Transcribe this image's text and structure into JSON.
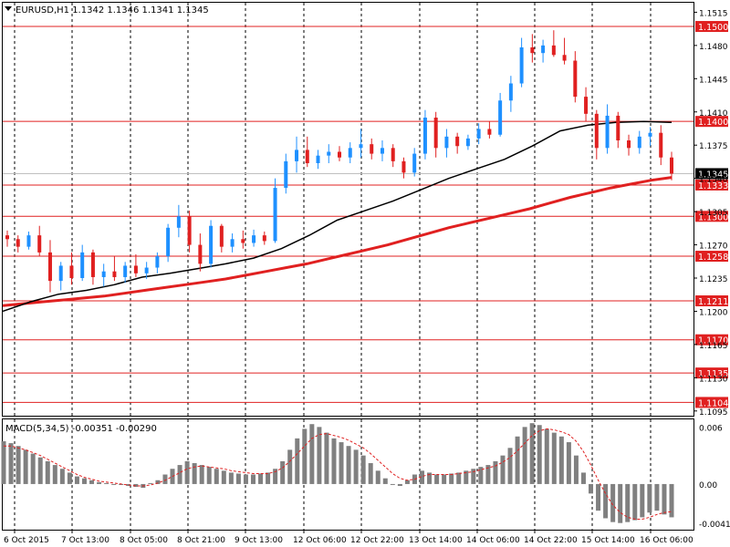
{
  "chart_data": [
    {
      "type": "candlestick",
      "symbol": "EURUSD,H1",
      "title": "EURUSD,H1  1.1342  1.1346  1.1341  1.1345",
      "ohlc": {
        "open": 1.1342,
        "high": 1.1346,
        "low": 1.1341,
        "close": 1.1345
      },
      "ylim": [
        1.109,
        1.1525
      ],
      "y_ticks": [
        "1.1515",
        "1.1480",
        "1.1445",
        "1.1410",
        "1.1375",
        "1.1340",
        "1.1305",
        "1.1270",
        "1.1235",
        "1.1200",
        "1.1165",
        "1.1130",
        "1.1095"
      ],
      "x_ticks": [
        "6 Oct 2015",
        "7 Oct 13:00",
        "8 Oct 05:00",
        "8 Oct 21:00",
        "9 Oct 13:00",
        "12 Oct 06:00",
        "12 Oct 22:00",
        "13 Oct 14:00",
        "14 Oct 06:00",
        "14 Oct 22:00",
        "15 Oct 14:00",
        "16 Oct 06:00"
      ],
      "current_price": "1.1345",
      "horizontal_levels": [
        "1.1500",
        "1.1400",
        "1.1333",
        "1.1300",
        "1.1258",
        "1.1211",
        "1.1170",
        "1.1135",
        "1.1104"
      ],
      "up_color": "#1e90ff",
      "down_color": "#e02020",
      "level_color": "#e02020",
      "candles": [
        [
          1.128,
          1.1285,
          1.1268,
          1.1276
        ],
        [
          1.1276,
          1.128,
          1.1262,
          1.1268
        ],
        [
          1.1268,
          1.1284,
          1.1265,
          1.128
        ],
        [
          1.128,
          1.129,
          1.1258,
          1.1262
        ],
        [
          1.1262,
          1.1275,
          1.122,
          1.1232
        ],
        [
          1.1232,
          1.1252,
          1.1222,
          1.1248
        ],
        [
          1.1248,
          1.1262,
          1.1228,
          1.1235
        ],
        [
          1.1235,
          1.127,
          1.1232,
          1.1262
        ],
        [
          1.1262,
          1.1265,
          1.1228,
          1.1236
        ],
        [
          1.1236,
          1.125,
          1.1226,
          1.1242
        ],
        [
          1.1242,
          1.1258,
          1.1232,
          1.1236
        ],
        [
          1.1236,
          1.1252,
          1.123,
          1.1248
        ],
        [
          1.1248,
          1.126,
          1.1236,
          1.124
        ],
        [
          1.124,
          1.1252,
          1.1234,
          1.1246
        ],
        [
          1.1246,
          1.1262,
          1.124,
          1.1258
        ],
        [
          1.1258,
          1.1292,
          1.1252,
          1.1288
        ],
        [
          1.1288,
          1.1312,
          1.1278,
          1.13
        ],
        [
          1.13,
          1.1306,
          1.1262,
          1.127
        ],
        [
          1.127,
          1.1282,
          1.1242,
          1.125
        ],
        [
          1.125,
          1.1296,
          1.1246,
          1.129
        ],
        [
          1.129,
          1.1292,
          1.1262,
          1.1268
        ],
        [
          1.1268,
          1.1282,
          1.1262,
          1.1276
        ],
        [
          1.1276,
          1.1285,
          1.1266,
          1.1272
        ],
        [
          1.1272,
          1.1286,
          1.1268,
          1.128
        ],
        [
          1.128,
          1.1284,
          1.127,
          1.1274
        ],
        [
          1.1274,
          1.134,
          1.1272,
          1.133
        ],
        [
          1.133,
          1.1366,
          1.1324,
          1.1358
        ],
        [
          1.1358,
          1.1384,
          1.1346,
          1.137
        ],
        [
          1.137,
          1.1384,
          1.1352,
          1.1356
        ],
        [
          1.1356,
          1.137,
          1.135,
          1.1364
        ],
        [
          1.1364,
          1.1376,
          1.1356,
          1.1368
        ],
        [
          1.1368,
          1.1374,
          1.1358,
          1.1362
        ],
        [
          1.1362,
          1.1378,
          1.1356,
          1.1372
        ],
        [
          1.1372,
          1.1392,
          1.1362,
          1.1376
        ],
        [
          1.1376,
          1.1382,
          1.136,
          1.1366
        ],
        [
          1.1366,
          1.138,
          1.1358,
          1.1372
        ],
        [
          1.1372,
          1.1376,
          1.1352,
          1.1358
        ],
        [
          1.1358,
          1.1362,
          1.134,
          1.1346
        ],
        [
          1.1346,
          1.1372,
          1.1342,
          1.1366
        ],
        [
          1.1366,
          1.1412,
          1.136,
          1.1404
        ],
        [
          1.1404,
          1.141,
          1.1362,
          1.1372
        ],
        [
          1.1372,
          1.1392,
          1.1362,
          1.1384
        ],
        [
          1.1384,
          1.1388,
          1.1366,
          1.1374
        ],
        [
          1.1374,
          1.1386,
          1.137,
          1.1382
        ],
        [
          1.1382,
          1.1398,
          1.1376,
          1.1392
        ],
        [
          1.1392,
          1.14,
          1.1382,
          1.1386
        ],
        [
          1.1386,
          1.143,
          1.1384,
          1.1422
        ],
        [
          1.1422,
          1.1448,
          1.141,
          1.144
        ],
        [
          1.144,
          1.1488,
          1.1436,
          1.1478
        ],
        [
          1.1478,
          1.1492,
          1.1462,
          1.1472
        ],
        [
          1.1472,
          1.1486,
          1.1462,
          1.148
        ],
        [
          1.148,
          1.1496,
          1.1468,
          1.147
        ],
        [
          1.147,
          1.1488,
          1.146,
          1.1464
        ],
        [
          1.1464,
          1.1474,
          1.142,
          1.1426
        ],
        [
          1.1426,
          1.1436,
          1.14,
          1.1408
        ],
        [
          1.1408,
          1.1412,
          1.136,
          1.1372
        ],
        [
          1.1372,
          1.1418,
          1.1366,
          1.1406
        ],
        [
          1.1406,
          1.141,
          1.1372,
          1.138
        ],
        [
          1.138,
          1.1386,
          1.1364,
          1.1372
        ],
        [
          1.1372,
          1.139,
          1.1366,
          1.1384
        ],
        [
          1.1384,
          1.1394,
          1.1374,
          1.1388
        ],
        [
          1.1388,
          1.1396,
          1.1354,
          1.1362
        ],
        [
          1.1362,
          1.1368,
          1.1338,
          1.1345
        ]
      ],
      "ma_slow": [
        1.1206,
        1.1208,
        1.121,
        1.1212,
        1.1214,
        1.1216,
        1.1219,
        1.1222,
        1.1225,
        1.1228,
        1.1231,
        1.1234,
        1.1238,
        1.1242,
        1.1246,
        1.125,
        1.1255,
        1.126,
        1.1265,
        1.127,
        1.1276,
        1.1282,
        1.1288,
        1.1293,
        1.1298,
        1.1303,
        1.1308,
        1.1314,
        1.132,
        1.1325,
        1.133,
        1.1334,
        1.1338,
        1.1341
      ],
      "ma_fast": [
        1.12,
        1.121,
        1.1218,
        1.1222,
        1.1228,
        1.1236,
        1.124,
        1.1245,
        1.125,
        1.1256,
        1.1266,
        1.128,
        1.1296,
        1.1306,
        1.1316,
        1.1328,
        1.134,
        1.135,
        1.136,
        1.1374,
        1.139,
        1.1396,
        1.1399,
        1.14,
        1.1399
      ],
      "ma_fast_color": "#000000",
      "ma_slow_color": "#e02020"
    },
    {
      "type": "bar",
      "title": "MACD(5,34,5) -0.00351 -0.00290",
      "ylim": [
        -0.0048,
        0.0068
      ],
      "y_ticks": [
        "0.006",
        "0.00",
        "-0.00412"
      ],
      "bar_color": "#808080",
      "signal_color": "#e02020",
      "values": [
        0.0045,
        0.0043,
        0.004,
        0.0036,
        0.0032,
        0.0028,
        0.0024,
        0.002,
        0.0016,
        0.0012,
        0.0008,
        0.0006,
        0.0004,
        0.0002,
        0.0001,
        0.0,
        -0.0001,
        -0.0002,
        -0.0003,
        -0.0004,
        0.0001,
        0.0004,
        0.001,
        0.0016,
        0.002,
        0.0024,
        0.0022,
        0.002,
        0.0018,
        0.0016,
        0.0014,
        0.0012,
        0.0011,
        0.001,
        0.001,
        0.0011,
        0.0012,
        0.0016,
        0.0024,
        0.0036,
        0.0048,
        0.0058,
        0.0063,
        0.006,
        0.0054,
        0.0048,
        0.0044,
        0.004,
        0.0036,
        0.003,
        0.0022,
        0.0014,
        0.0006,
        0.0,
        -0.0002,
        0.0004,
        0.001,
        0.0014,
        0.0012,
        0.001,
        0.001,
        0.0011,
        0.0012,
        0.0014,
        0.0016,
        0.0018,
        0.002,
        0.0024,
        0.003,
        0.0038,
        0.005,
        0.006,
        0.0064,
        0.0062,
        0.0058,
        0.0054,
        0.005,
        0.0044,
        0.003,
        0.0012,
        -0.001,
        -0.0028,
        -0.0036,
        -0.004,
        -0.0041,
        -0.004,
        -0.0038,
        -0.0035,
        -0.003,
        -0.0028,
        -0.0032,
        -0.0035
      ],
      "signal": [
        0.004,
        0.004,
        0.0038,
        0.0036,
        0.0033,
        0.003,
        0.0026,
        0.0022,
        0.0018,
        0.0014,
        0.001,
        0.0007,
        0.0005,
        0.0003,
        0.0002,
        0.0001,
        0.0,
        -0.0001,
        -0.0002,
        -0.0002,
        -0.0001,
        0.0001,
        0.0004,
        0.0008,
        0.0012,
        0.0016,
        0.0018,
        0.0019,
        0.0018,
        0.0017,
        0.0016,
        0.0014,
        0.0013,
        0.0012,
        0.0011,
        0.0011,
        0.0011,
        0.0013,
        0.0017,
        0.0024,
        0.0032,
        0.004,
        0.0048,
        0.0052,
        0.0053,
        0.0051,
        0.0049,
        0.0046,
        0.0042,
        0.0038,
        0.0032,
        0.0025,
        0.0018,
        0.0011,
        0.0006,
        0.0004,
        0.0005,
        0.0008,
        0.001,
        0.001,
        0.001,
        0.001,
        0.0011,
        0.0012,
        0.0013,
        0.0015,
        0.0017,
        0.0019,
        0.0023,
        0.0028,
        0.0035,
        0.0043,
        0.0051,
        0.0056,
        0.0058,
        0.0057,
        0.0055,
        0.0052,
        0.0045,
        0.0034,
        0.002,
        0.0004,
        -0.001,
        -0.0022,
        -0.003,
        -0.0035,
        -0.0037,
        -0.0037,
        -0.0035,
        -0.0032,
        -0.003,
        -0.0029
      ]
    }
  ]
}
